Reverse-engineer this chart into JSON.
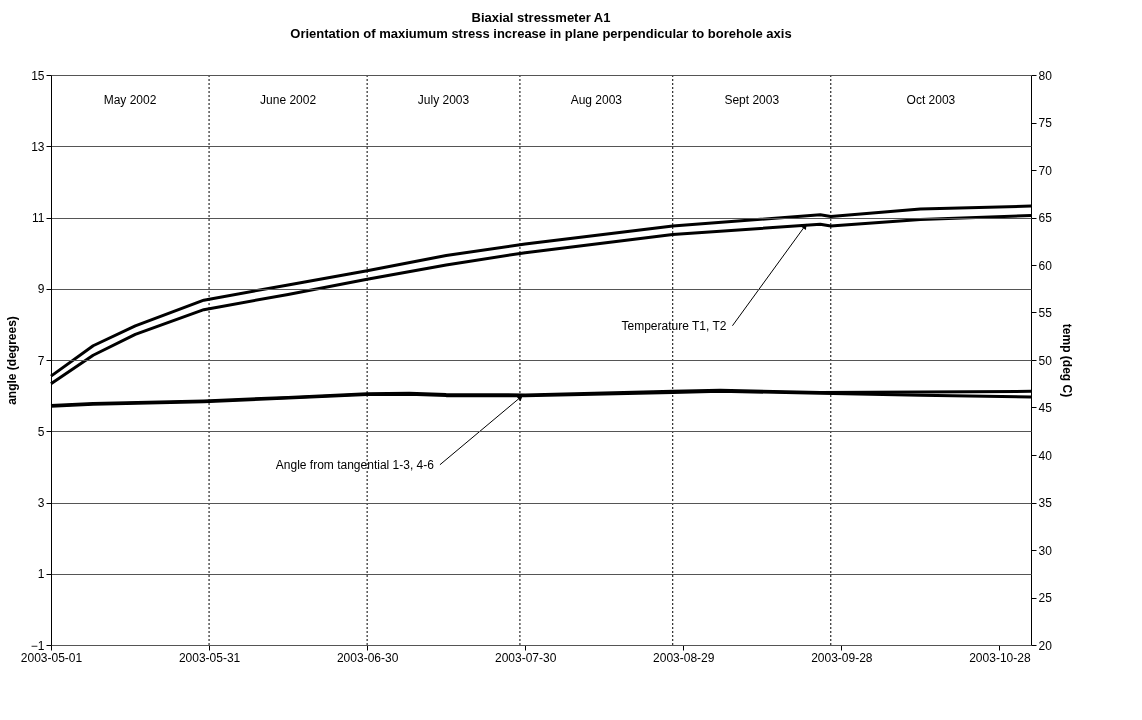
{
  "chart_data": {
    "type": "line",
    "title": "Biaxial stressmeter A1",
    "subtitle": "Orientation of maxiumum stress increase in plane perpendicular to borehole axis",
    "ylabel": "angle (degrees)",
    "y2label": "temp (deg C)",
    "xlim": [
      "2003-05-01",
      "2003-11-03"
    ],
    "xticks": [
      "2003-05-01",
      "2003-05-31",
      "2003-06-30",
      "2003-07-30",
      "2003-08-29",
      "2003-09-28",
      "2003-10-28"
    ],
    "ylim": [
      -1,
      15
    ],
    "yticks": [
      -1,
      1,
      3,
      5,
      7,
      9,
      11,
      13,
      15
    ],
    "y2lim": [
      20,
      80
    ],
    "y2ticks": [
      20,
      25,
      30,
      35,
      40,
      45,
      50,
      55,
      60,
      65,
      70,
      75,
      80
    ],
    "grid": "y",
    "series": [
      {
        "color": "#000000",
        "axis": "y2",
        "x": [
          "2003-05-01",
          "2003-05-09",
          "2003-05-17",
          "2003-05-30",
          "2003-06-15",
          "2003-06-30",
          "2003-07-15",
          "2003-07-30",
          "2003-08-27",
          "2003-09-24",
          "2003-09-26",
          "2003-10-13",
          "2003-11-03"
        ],
        "values": [
          48.3,
          51.5,
          53.6,
          56.3,
          57.9,
          59.4,
          61.0,
          62.2,
          64.1,
          65.3,
          65.1,
          65.9,
          66.2
        ]
      },
      {
        "color": "#000000",
        "axis": "y2",
        "x": [
          "2003-05-01",
          "2003-05-09",
          "2003-05-17",
          "2003-05-30",
          "2003-06-15",
          "2003-06-30",
          "2003-07-15",
          "2003-07-30",
          "2003-08-27",
          "2003-09-24",
          "2003-09-26",
          "2003-10-13",
          "2003-11-03"
        ],
        "values": [
          47.5,
          50.5,
          52.7,
          55.3,
          56.9,
          58.5,
          60.0,
          61.3,
          63.2,
          64.3,
          64.1,
          64.8,
          65.2
        ]
      },
      {
        "color": "#000000",
        "x": [
          "2003-05-01",
          "2003-05-09",
          "2003-05-30",
          "2003-06-15",
          "2003-06-30",
          "2003-07-08",
          "2003-07-15",
          "2003-07-30",
          "2003-08-27",
          "2003-09-05",
          "2003-09-24",
          "2003-10-13",
          "2003-11-03"
        ],
        "values": [
          5.72,
          5.78,
          5.85,
          5.95,
          6.05,
          6.07,
          6.03,
          6.02,
          6.12,
          6.15,
          6.09,
          6.1,
          6.12
        ]
      },
      {
        "color": "#000000",
        "x": [
          "2003-05-01",
          "2003-05-09",
          "2003-05-30",
          "2003-06-15",
          "2003-06-30",
          "2003-07-08",
          "2003-07-15",
          "2003-07-30",
          "2003-08-27",
          "2003-09-05",
          "2003-09-24",
          "2003-10-13",
          "2003-11-03"
        ],
        "values": [
          5.7,
          5.76,
          5.83,
          5.93,
          6.03,
          6.04,
          6.0,
          6.0,
          6.09,
          6.12,
          6.07,
          6.01,
          5.96
        ]
      }
    ],
    "ref_lines": [
      {
        "axis": "x",
        "value": "2003-05-31",
        "line_style": "dotted"
      },
      {
        "axis": "x",
        "value": "2003-06-30",
        "line_style": "dotted"
      },
      {
        "axis": "x",
        "value": "2003-07-29",
        "line_style": "dotted"
      },
      {
        "axis": "x",
        "value": "2003-08-27",
        "line_style": "dotted"
      },
      {
        "axis": "x",
        "value": "2003-09-26",
        "line_style": "dotted"
      }
    ],
    "annotations": [
      "May 2002",
      "June 2002",
      "July 2003",
      "Aug 2003",
      "Sept 2003",
      "Oct 2003",
      {
        "text": "Temperature T1, T2",
        "x": "2003-09-21",
        "y": 10.74
      },
      {
        "text": "Angle from tangential 1-3, 4-6",
        "x": "2003-07-29",
        "y": 5.94
      }
    ]
  }
}
